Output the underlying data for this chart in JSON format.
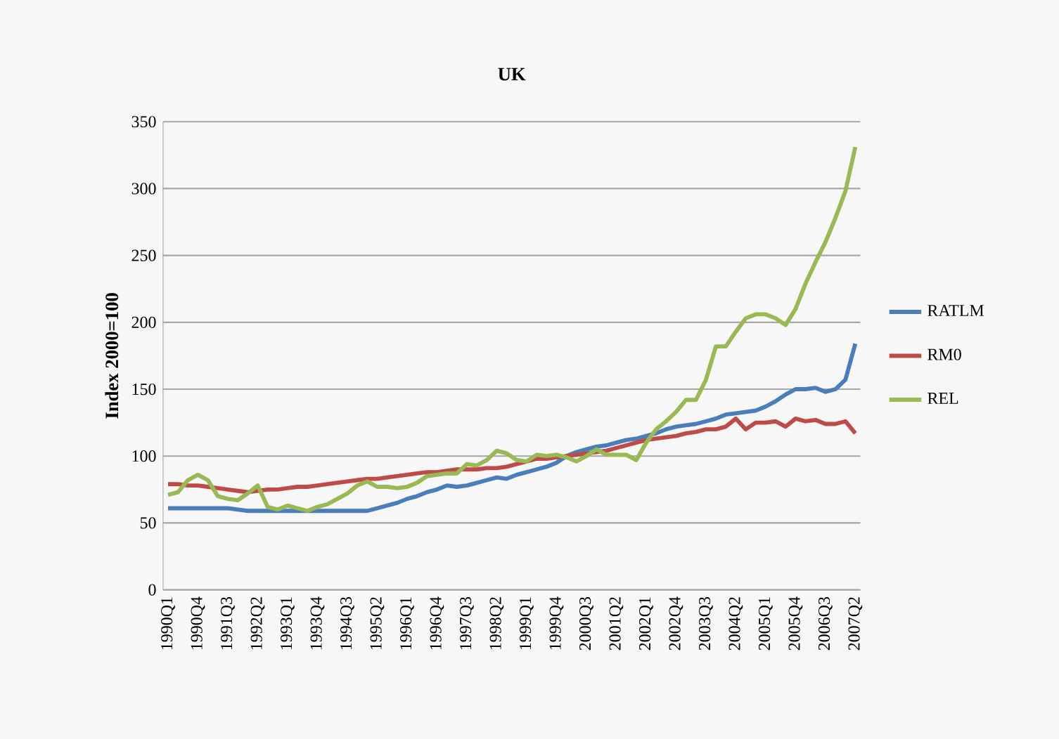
{
  "chart_data": {
    "type": "line",
    "title": "UK",
    "ylabel": "Index 2000=100",
    "categories": [
      "1990Q1",
      null,
      null,
      "1990Q4",
      null,
      null,
      "1991Q3",
      null,
      null,
      "1992Q2",
      null,
      null,
      "1993Q1",
      null,
      null,
      "1993Q4",
      null,
      null,
      "1994Q3",
      null,
      null,
      "1995Q2",
      null,
      null,
      "1996Q1",
      null,
      null,
      "1996Q4",
      null,
      null,
      "1997Q3",
      null,
      null,
      "1998Q2",
      null,
      null,
      "1999Q1",
      null,
      null,
      "1999Q4",
      null,
      null,
      "2000Q3",
      null,
      null,
      "2001Q2",
      null,
      null,
      "2002Q1",
      null,
      null,
      "2002Q4",
      null,
      null,
      "2003Q3",
      null,
      null,
      "2004Q2",
      null,
      null,
      "2005Q1",
      null,
      null,
      "2005Q4",
      null,
      null,
      "2006Q3",
      null,
      null,
      "2007Q2"
    ],
    "series": [
      {
        "name": "RATLM",
        "color": "#4a7ebb",
        "values": [
          61,
          61,
          61,
          61,
          61,
          61,
          61,
          60,
          59,
          59,
          59,
          59,
          59,
          59,
          59,
          59,
          59,
          59,
          59,
          59,
          59,
          61,
          63,
          65,
          68,
          70,
          73,
          75,
          78,
          77,
          78,
          80,
          82,
          84,
          83,
          86,
          88,
          90,
          92,
          95,
          100,
          103,
          105,
          107,
          108,
          110,
          112,
          113,
          115,
          117,
          120,
          122,
          123,
          124,
          126,
          128,
          131,
          132,
          133,
          134,
          137,
          141,
          146,
          150,
          150,
          151,
          148,
          150,
          157,
          184
        ]
      },
      {
        "name": "RM0",
        "color": "#be4b48",
        "values": [
          79,
          79,
          78,
          78,
          77,
          76,
          75,
          74,
          73,
          74,
          75,
          75,
          76,
          77,
          77,
          78,
          79,
          80,
          81,
          82,
          83,
          83,
          84,
          85,
          86,
          87,
          88,
          88,
          89,
          90,
          90,
          90,
          91,
          91,
          92,
          94,
          96,
          98,
          98,
          99,
          100,
          101,
          102,
          103,
          104,
          106,
          108,
          110,
          112,
          113,
          114,
          115,
          117,
          118,
          120,
          120,
          122,
          128,
          120,
          125,
          125,
          126,
          122,
          128,
          126,
          127,
          124,
          124,
          126,
          117
        ]
      },
      {
        "name": "REL",
        "color": "#98b954",
        "values": [
          71,
          73,
          82,
          86,
          82,
          70,
          68,
          67,
          72,
          78,
          62,
          60,
          63,
          61,
          59,
          62,
          64,
          68,
          72,
          78,
          81,
          77,
          77,
          76,
          77,
          80,
          85,
          86,
          87,
          87,
          94,
          93,
          97,
          104,
          102,
          97,
          96,
          101,
          100,
          101,
          99,
          96,
          100,
          105,
          101,
          101,
          101,
          97,
          110,
          120,
          126,
          133,
          142,
          142,
          157,
          182,
          182,
          193,
          203,
          206,
          206,
          203,
          198,
          210,
          229,
          245,
          260,
          278,
          298,
          331
        ]
      }
    ],
    "ylim": [
      0,
      350
    ],
    "yticks": [
      0,
      50,
      100,
      150,
      200,
      250,
      300,
      350
    ],
    "grid": "y",
    "legend": "right",
    "line_style": "solid",
    "marker": "none"
  }
}
